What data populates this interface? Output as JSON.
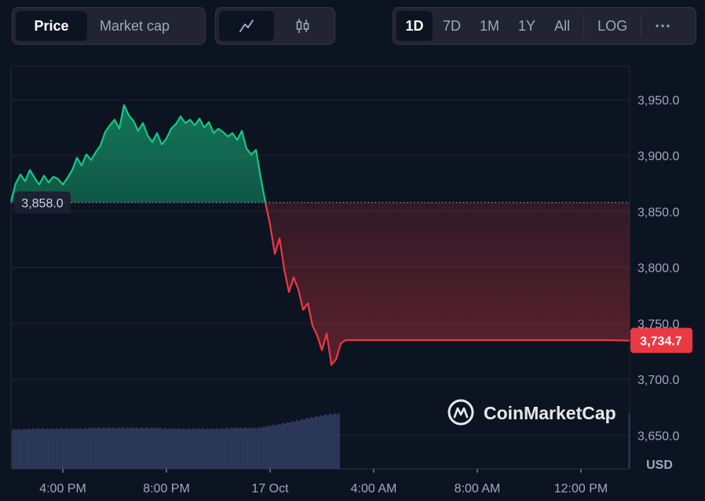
{
  "toolbar": {
    "type_tabs": [
      {
        "label": "Price",
        "active": true
      },
      {
        "label": "Market cap",
        "active": false
      }
    ],
    "style_buttons": [
      {
        "icon": "line-chart-icon",
        "active": true
      },
      {
        "icon": "candlestick-icon",
        "active": false
      }
    ],
    "range_tabs": [
      {
        "label": "1D",
        "active": true
      },
      {
        "label": "7D",
        "active": false
      },
      {
        "label": "1M",
        "active": false
      },
      {
        "label": "1Y",
        "active": false
      },
      {
        "label": "All",
        "active": false
      }
    ],
    "log_label": "LOG",
    "more_icon": "more-dots-icon"
  },
  "watermark": "CoinMarketCap",
  "colors": {
    "up": "#16c784",
    "down": "#ea3943",
    "volume": "#334066",
    "grid": "#222531",
    "background": "#0d1421"
  },
  "chart_data": {
    "type": "area",
    "x_ticks": [
      "4:00 PM",
      "8:00 PM",
      "17 Oct",
      "4:00 AM",
      "8:00 AM",
      "12:00 PM"
    ],
    "y_ticks": [
      "3,950.0",
      "3,900.0",
      "3,850.0",
      "3,800.0",
      "3,750.0",
      "3,700.0",
      "3,650.0"
    ],
    "y_tick_values": [
      3950,
      3900,
      3850,
      3800,
      3750,
      3700,
      3650
    ],
    "ylim": [
      3620,
      3980
    ],
    "ylabel": "USD",
    "reference_price": 3858.0,
    "reference_label": "3,858.0",
    "last_price": 3734.7,
    "last_price_label": "3,734.7",
    "grid": true,
    "price_series": [
      [
        0.0,
        3859
      ],
      [
        0.23,
        3875
      ],
      [
        0.46,
        3883
      ],
      [
        0.69,
        3877
      ],
      [
        0.92,
        3887
      ],
      [
        1.15,
        3880
      ],
      [
        1.38,
        3874
      ],
      [
        1.61,
        3882
      ],
      [
        1.84,
        3876
      ],
      [
        2.07,
        3881
      ],
      [
        2.3,
        3879
      ],
      [
        2.53,
        3874
      ],
      [
        2.76,
        3880
      ],
      [
        2.99,
        3887
      ],
      [
        3.22,
        3898
      ],
      [
        3.45,
        3891
      ],
      [
        3.68,
        3901
      ],
      [
        3.91,
        3896
      ],
      [
        4.14,
        3903
      ],
      [
        4.37,
        3909
      ],
      [
        4.6,
        3921
      ],
      [
        4.83,
        3927
      ],
      [
        5.06,
        3932
      ],
      [
        5.29,
        3924
      ],
      [
        5.52,
        3945
      ],
      [
        5.75,
        3936
      ],
      [
        5.98,
        3931
      ],
      [
        6.21,
        3922
      ],
      [
        6.44,
        3929
      ],
      [
        6.67,
        3918
      ],
      [
        6.9,
        3912
      ],
      [
        7.13,
        3920
      ],
      [
        7.36,
        3910
      ],
      [
        7.59,
        3915
      ],
      [
        7.82,
        3924
      ],
      [
        8.05,
        3928
      ],
      [
        8.28,
        3935
      ],
      [
        8.51,
        3929
      ],
      [
        8.74,
        3932
      ],
      [
        8.97,
        3927
      ],
      [
        9.2,
        3933
      ],
      [
        9.43,
        3925
      ],
      [
        9.66,
        3930
      ],
      [
        9.89,
        3920
      ],
      [
        10.12,
        3924
      ],
      [
        10.35,
        3921
      ],
      [
        10.58,
        3917
      ],
      [
        10.81,
        3920
      ],
      [
        11.04,
        3914
      ],
      [
        11.27,
        3922
      ],
      [
        11.5,
        3906
      ],
      [
        11.73,
        3901
      ],
      [
        11.96,
        3905
      ],
      [
        12.19,
        3880
      ],
      [
        12.42,
        3858
      ],
      [
        12.65,
        3838
      ],
      [
        12.88,
        3812
      ],
      [
        13.11,
        3826
      ],
      [
        13.34,
        3798
      ],
      [
        13.57,
        3778
      ],
      [
        13.8,
        3791
      ],
      [
        14.03,
        3780
      ],
      [
        14.26,
        3762
      ],
      [
        14.49,
        3768
      ],
      [
        14.72,
        3748
      ],
      [
        14.95,
        3739
      ],
      [
        15.18,
        3726
      ],
      [
        15.41,
        3741
      ],
      [
        15.64,
        3713
      ],
      [
        15.87,
        3718
      ],
      [
        16.1,
        3732
      ],
      [
        16.33,
        3735
      ],
      [
        17.0,
        3735
      ],
      [
        18.0,
        3735
      ],
      [
        19.0,
        3735
      ],
      [
        20.0,
        3735
      ],
      [
        21.0,
        3735
      ],
      [
        22.0,
        3735
      ],
      [
        23.0,
        3735
      ],
      [
        24.0,
        3735
      ],
      [
        25.0,
        3735
      ],
      [
        26.0,
        3735
      ],
      [
        27.0,
        3735
      ],
      [
        28.0,
        3735
      ],
      [
        29.0,
        3735
      ],
      [
        30.0,
        3734.7
      ],
      [
        30.2,
        3734.7
      ]
    ],
    "volume_series": [
      [
        0,
        0.46
      ],
      [
        1,
        0.47
      ],
      [
        2,
        0.47
      ],
      [
        3,
        0.47
      ],
      [
        4,
        0.48
      ],
      [
        5,
        0.48
      ],
      [
        6,
        0.48
      ],
      [
        7,
        0.48
      ],
      [
        8,
        0.47
      ],
      [
        9,
        0.47
      ],
      [
        10,
        0.47
      ],
      [
        11,
        0.48
      ],
      [
        12,
        0.48
      ],
      [
        13,
        0.52
      ],
      [
        14,
        0.57
      ],
      [
        15,
        0.62
      ],
      [
        15.5,
        0.64
      ],
      [
        16.0,
        0.65
      ]
    ]
  }
}
